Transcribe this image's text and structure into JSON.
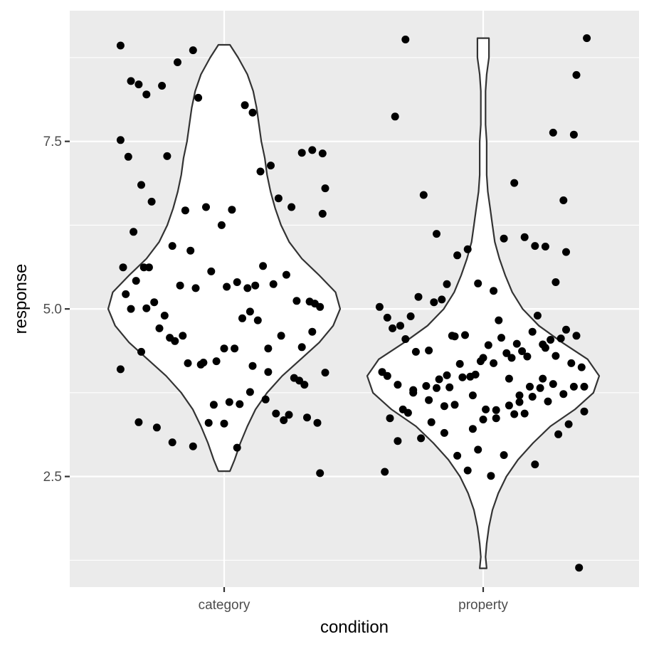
{
  "chart_data": {
    "type": "violin",
    "xlabel": "condition",
    "ylabel": "response",
    "categories": [
      "category",
      "property"
    ],
    "ylim": [
      0.85,
      9.45
    ],
    "yticks": [
      2.5,
      5.0,
      7.5
    ],
    "ytick_labels": [
      "2.5",
      "5.0",
      "7.5"
    ],
    "grid": true,
    "legend": "none",
    "colors": {
      "panel": "#ebebeb",
      "grid": "#ffffff",
      "violin_fill": "#ffffff",
      "violin_outline": "#333333",
      "point": "#000000",
      "tick_label": "#4d4d4d",
      "title": "#000000"
    },
    "violins": [
      {
        "category": "category",
        "y": [
          2.58,
          2.75,
          3.0,
          3.25,
          3.5,
          3.75,
          4.0,
          4.25,
          4.5,
          4.75,
          5.0,
          5.25,
          5.5,
          5.75,
          6.0,
          6.25,
          6.5,
          6.75,
          7.0,
          7.25,
          7.5,
          7.75,
          8.0,
          8.25,
          8.5,
          8.75,
          8.94
        ],
        "density": [
          0.05,
          0.09,
          0.14,
          0.2,
          0.27,
          0.37,
          0.5,
          0.66,
          0.82,
          0.94,
          1.0,
          0.96,
          0.82,
          0.67,
          0.56,
          0.49,
          0.44,
          0.4,
          0.37,
          0.35,
          0.32,
          0.3,
          0.28,
          0.25,
          0.2,
          0.12,
          0.05
        ]
      },
      {
        "category": "property",
        "y": [
          1.13,
          1.3,
          1.5,
          1.75,
          2.0,
          2.25,
          2.5,
          2.75,
          3.0,
          3.25,
          3.5,
          3.75,
          4.0,
          4.25,
          4.5,
          4.75,
          5.0,
          5.25,
          5.5,
          5.75,
          6.0,
          6.25,
          6.5,
          6.75,
          7.0,
          7.25,
          7.5,
          7.75,
          8.0,
          8.25,
          8.5,
          8.75,
          9.04
        ],
        "density": [
          0.03,
          0.02,
          0.03,
          0.05,
          0.08,
          0.13,
          0.2,
          0.3,
          0.43,
          0.58,
          0.79,
          0.95,
          1.0,
          0.9,
          0.68,
          0.48,
          0.34,
          0.25,
          0.19,
          0.14,
          0.1,
          0.08,
          0.06,
          0.04,
          0.03,
          0.03,
          0.03,
          0.02,
          0.02,
          0.02,
          0.03,
          0.05,
          0.05
        ]
      }
    ],
    "points": [
      {
        "category": "category",
        "x_jitter": [
          -0.4,
          -0.36,
          -0.33,
          -0.3,
          -0.24,
          -0.18,
          -0.12,
          -0.4,
          -0.37,
          -0.32,
          -0.28,
          -0.22,
          -0.15,
          -0.1,
          -0.35,
          -0.29,
          -0.2,
          -0.13,
          -0.07,
          -0.01,
          0.03,
          0.08,
          0.11,
          0.14,
          0.18,
          0.21,
          0.26,
          0.3,
          0.34,
          0.38,
          -0.39,
          -0.34,
          -0.31,
          -0.27,
          -0.23,
          -0.17,
          -0.11,
          -0.05,
          0.01,
          0.05,
          0.09,
          0.12,
          0.15,
          0.19,
          0.24,
          0.28,
          0.33,
          0.37,
          0.39,
          -0.38,
          -0.3,
          -0.25,
          -0.19,
          -0.16,
          -0.08,
          -0.03,
          0.0,
          0.04,
          0.07,
          0.1,
          0.13,
          0.17,
          0.22,
          0.27,
          0.31,
          0.35,
          0.38,
          -0.36,
          -0.32,
          -0.21,
          -0.14,
          -0.09,
          -0.04,
          0.02,
          0.06,
          0.1,
          0.16,
          0.2,
          0.25,
          0.29,
          0.32,
          0.36,
          0.39,
          -0.4,
          -0.33,
          -0.26,
          -0.2,
          -0.12,
          -0.06,
          0.0,
          0.05,
          0.11,
          0.17,
          0.23,
          0.3,
          0.34,
          0.37
        ],
        "y": [
          8.93,
          8.4,
          8.35,
          8.2,
          8.33,
          8.68,
          8.86,
          7.52,
          7.27,
          6.85,
          6.6,
          7.28,
          6.47,
          8.15,
          6.15,
          5.62,
          5.94,
          5.87,
          6.52,
          6.25,
          6.48,
          8.04,
          7.93,
          7.05,
          7.14,
          6.65,
          6.52,
          7.33,
          7.37,
          7.32,
          5.62,
          5.42,
          5.62,
          5.1,
          4.9,
          5.35,
          5.31,
          5.56,
          5.33,
          5.4,
          5.31,
          5.35,
          5.64,
          5.37,
          5.51,
          5.12,
          5.11,
          5.03,
          6.8,
          5.22,
          5.01,
          4.71,
          4.52,
          4.6,
          4.2,
          4.22,
          4.41,
          4.41,
          4.86,
          4.96,
          4.83,
          4.41,
          4.6,
          3.97,
          3.87,
          5.08,
          6.42,
          5.0,
          4.36,
          4.57,
          4.19,
          4.17,
          3.57,
          3.61,
          3.58,
          3.76,
          3.65,
          3.44,
          3.42,
          3.93,
          3.38,
          3.3,
          4.05,
          4.1,
          3.31,
          3.23,
          3.01,
          2.95,
          3.3,
          3.29,
          2.93,
          4.15,
          4.06,
          3.34,
          4.43,
          4.66,
          2.55
        ]
      },
      {
        "category": "property",
        "x_jitter": [
          -0.38,
          -0.33,
          -0.29,
          -0.24,
          -0.2,
          -0.15,
          -0.1,
          -0.06,
          -0.02,
          0.03,
          0.08,
          0.12,
          0.16,
          0.2,
          0.25,
          0.29,
          0.33,
          0.37,
          -0.36,
          -0.31,
          -0.27,
          -0.22,
          -0.17,
          -0.13,
          -0.08,
          -0.04,
          0.01,
          0.05,
          0.1,
          0.14,
          0.18,
          0.22,
          0.27,
          0.31,
          0.35,
          0.39,
          -0.39,
          -0.35,
          -0.3,
          -0.26,
          -0.21,
          -0.18,
          -0.14,
          -0.11,
          -0.07,
          -0.03,
          0.0,
          0.04,
          0.07,
          0.11,
          0.15,
          0.19,
          0.23,
          0.26,
          0.3,
          0.34,
          0.38,
          -0.37,
          -0.32,
          -0.28,
          -0.25,
          -0.19,
          -0.16,
          -0.12,
          -0.09,
          -0.05,
          -0.01,
          0.02,
          0.06,
          0.09,
          0.13,
          0.17,
          0.21,
          0.24,
          0.28,
          0.32,
          0.36,
          -0.4,
          -0.34,
          -0.3,
          -0.23,
          -0.18,
          -0.14,
          -0.1,
          -0.06,
          -0.02,
          0.04,
          0.08,
          0.12,
          0.16,
          0.2,
          0.24,
          0.28,
          0.32,
          0.36,
          0.4,
          -0.37,
          -0.33,
          -0.27,
          -0.21,
          -0.15,
          -0.11,
          -0.04,
          0.0,
          0.05,
          0.1,
          0.14,
          0.19,
          0.23,
          0.27,
          0.31,
          0.35,
          0.39
        ],
        "y": [
          2.57,
          3.03,
          3.45,
          3.07,
          3.31,
          3.15,
          2.81,
          2.59,
          2.9,
          2.51,
          2.82,
          3.43,
          3.44,
          2.68,
          3.62,
          3.13,
          3.28,
          1.14,
          3.37,
          3.5,
          3.75,
          3.85,
          3.95,
          3.83,
          3.98,
          3.71,
          3.5,
          3.37,
          3.96,
          3.71,
          3.84,
          3.82,
          3.88,
          3.73,
          3.84,
          3.47,
          4.06,
          4.71,
          4.55,
          4.36,
          4.38,
          3.82,
          4.01,
          4.59,
          4.61,
          4.02,
          4.27,
          4.19,
          4.57,
          4.27,
          4.37,
          4.66,
          4.47,
          4.54,
          4.56,
          4.19,
          4.13,
          4.87,
          4.75,
          4.89,
          5.18,
          5.1,
          5.14,
          4.6,
          4.18,
          3.99,
          4.22,
          4.46,
          4.83,
          4.34,
          4.48,
          4.29,
          4.9,
          4.42,
          4.3,
          4.69,
          4.6,
          5.03,
          7.87,
          9.02,
          6.7,
          6.12,
          5.37,
          5.8,
          5.89,
          5.38,
          5.27,
          6.05,
          6.88,
          6.07,
          5.94,
          5.93,
          5.4,
          5.85,
          8.49,
          9.04,
          4.0,
          3.87,
          3.79,
          3.64,
          3.55,
          3.57,
          3.21,
          3.35,
          3.49,
          3.56,
          3.61,
          3.69,
          3.96,
          7.63,
          6.62,
          7.6,
          3.84
        ]
      }
    ]
  }
}
